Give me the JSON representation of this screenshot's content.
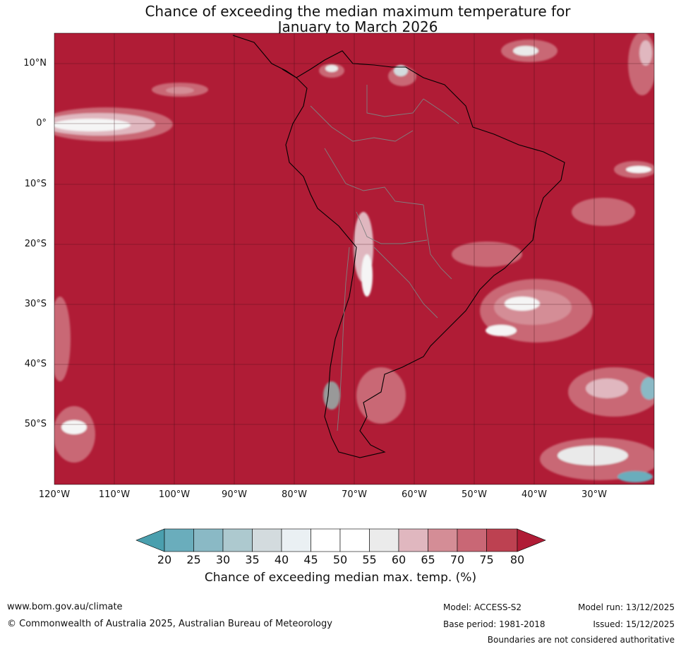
{
  "title": {
    "line1": "Chance of exceeding the median maximum temperature for",
    "line2": "January to March 2026"
  },
  "map": {
    "region": "South America",
    "latitude_labels": [
      "10°N",
      "0°",
      "10°S",
      "20°S",
      "30°S",
      "40°S",
      "50°S"
    ],
    "longitude_labels": [
      "120°W",
      "110°W",
      "100°W",
      "90°W",
      "80°W",
      "70°W",
      "60°W",
      "50°W",
      "40°W",
      "30°W"
    ],
    "colors": {
      "dominant_fill": "#b01c36",
      "land_outline": "#000000",
      "borders": "#808080",
      "gridlines": "#3a0a12"
    }
  },
  "colorbar": {
    "label": "Chance of exceeding median max. temp. (%)",
    "ticks": [
      "20",
      "25",
      "30",
      "35",
      "40",
      "45",
      "50",
      "55",
      "60",
      "65",
      "70",
      "75",
      "80"
    ],
    "colors": [
      "#4a9fae",
      "#6aadbc",
      "#8ab9c5",
      "#adc9cf",
      "#d3dbde",
      "#eaf0f3",
      "#ffffff",
      "#ffffff",
      "#ebebeb",
      "#e0b7bf",
      "#d48d96",
      "#c96775",
      "#bd4151",
      "#b01c36"
    ]
  },
  "footer": {
    "website": "www.bom.gov.au/climate",
    "copyright": "© Commonwealth of Australia 2025, Australian Bureau of Meteorology",
    "model": "Model: ACCESS-S2",
    "base_period": "Base period: 1981-2018",
    "model_run": "Model run: 13/12/2025",
    "issued": "Issued: 15/12/2025",
    "disclaimer": "Boundaries are not considered authoritative"
  }
}
